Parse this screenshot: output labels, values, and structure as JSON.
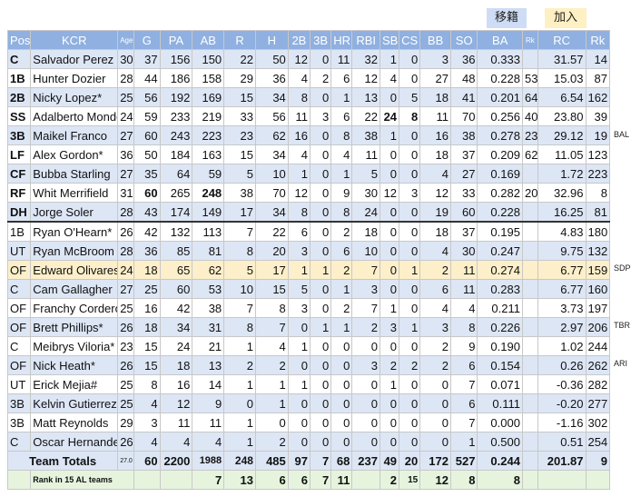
{
  "buttons": {
    "transfer": "移籍",
    "join": "加入"
  },
  "headers": [
    "Pos",
    "KCR",
    "Age",
    "G",
    "PA",
    "AB",
    "R",
    "H",
    "2B",
    "3B",
    "HR",
    "RBI",
    "SB",
    "CS",
    "BB",
    "SO",
    "BA",
    "Rk",
    "RC",
    "Rk"
  ],
  "rows": [
    {
      "pos": "C",
      "name": "Salvador Perez",
      "age": "30",
      "g": "37",
      "pa": "156",
      "ab": "150",
      "r": "22",
      "h": "50",
      "d": "12",
      "t": "0",
      "hr": "11",
      "rbi": "32",
      "sb": "1",
      "cs": "0",
      "bb": "3",
      "so": "36",
      "ba": "0.333",
      "rk1": "",
      "rc": "31.57",
      "rk2": "14",
      "side": ""
    },
    {
      "pos": "1B",
      "name": "Hunter Dozier",
      "age": "28",
      "g": "44",
      "pa": "186",
      "ab": "158",
      "r": "29",
      "h": "36",
      "d": "4",
      "t": "2",
      "hr": "6",
      "rbi": "12",
      "sb": "4",
      "cs": "0",
      "bb": "27",
      "so": "48",
      "ba": "0.228",
      "rk1": "53",
      "rc": "15.03",
      "rk2": "87",
      "side": ""
    },
    {
      "pos": "2B",
      "name": "Nicky Lopez*",
      "age": "25",
      "g": "56",
      "pa": "192",
      "ab": "169",
      "r": "15",
      "h": "34",
      "d": "8",
      "t": "0",
      "hr": "1",
      "rbi": "13",
      "sb": "0",
      "cs": "5",
      "bb": "18",
      "so": "41",
      "ba": "0.201",
      "rk1": "64",
      "rc": "6.54",
      "rk2": "162",
      "side": ""
    },
    {
      "pos": "SS",
      "name": "Adalberto Mondesi#",
      "age": "24",
      "g": "59",
      "pa": "233",
      "ab": "219",
      "r": "33",
      "h": "56",
      "d": "11",
      "t": "3",
      "hr": "6",
      "rbi": "22",
      "sb": "24",
      "cs": "8",
      "bb": "11",
      "so": "70",
      "ba": "0.256",
      "rk1": "40",
      "rc": "23.80",
      "rk2": "39",
      "side": ""
    },
    {
      "pos": "3B",
      "name": "Maikel Franco",
      "age": "27",
      "g": "60",
      "pa": "243",
      "ab": "223",
      "r": "23",
      "h": "62",
      "d": "16",
      "t": "0",
      "hr": "8",
      "rbi": "38",
      "sb": "1",
      "cs": "0",
      "bb": "16",
      "so": "38",
      "ba": "0.278",
      "rk1": "23",
      "rc": "29.12",
      "rk2": "19",
      "side": "BAL"
    },
    {
      "pos": "LF",
      "name": "Alex Gordon*",
      "age": "36",
      "g": "50",
      "pa": "184",
      "ab": "163",
      "r": "15",
      "h": "34",
      "d": "4",
      "t": "0",
      "hr": "4",
      "rbi": "11",
      "sb": "0",
      "cs": "0",
      "bb": "18",
      "so": "37",
      "ba": "0.209",
      "rk1": "62",
      "rc": "11.05",
      "rk2": "123",
      "side": ""
    },
    {
      "pos": "CF",
      "name": "Bubba Starling",
      "age": "27",
      "g": "35",
      "pa": "64",
      "ab": "59",
      "r": "5",
      "h": "10",
      "d": "1",
      "t": "0",
      "hr": "1",
      "rbi": "5",
      "sb": "0",
      "cs": "0",
      "bb": "4",
      "so": "27",
      "ba": "0.169",
      "rk1": "",
      "rc": "1.72",
      "rk2": "223",
      "side": ""
    },
    {
      "pos": "RF",
      "name": "Whit Merrifield",
      "age": "31",
      "g": "60",
      "pa": "265",
      "ab": "248",
      "r": "38",
      "h": "70",
      "d": "12",
      "t": "0",
      "hr": "9",
      "rbi": "30",
      "sb": "12",
      "cs": "3",
      "bb": "12",
      "so": "33",
      "ba": "0.282",
      "rk1": "20",
      "rc": "32.96",
      "rk2": "8",
      "side": ""
    },
    {
      "pos": "DH",
      "name": "Jorge Soler",
      "age": "28",
      "g": "43",
      "pa": "174",
      "ab": "149",
      "r": "17",
      "h": "34",
      "d": "8",
      "t": "0",
      "hr": "8",
      "rbi": "24",
      "sb": "0",
      "cs": "0",
      "bb": "19",
      "so": "60",
      "ba": "0.228",
      "rk1": "",
      "rc": "16.25",
      "rk2": "81",
      "side": ""
    },
    {
      "pos": "1B",
      "name": "Ryan O'Hearn*",
      "age": "26",
      "g": "42",
      "pa": "132",
      "ab": "113",
      "r": "7",
      "h": "22",
      "d": "6",
      "t": "0",
      "hr": "2",
      "rbi": "18",
      "sb": "0",
      "cs": "0",
      "bb": "18",
      "so": "37",
      "ba": "0.195",
      "rk1": "",
      "rc": "4.83",
      "rk2": "180",
      "side": ""
    },
    {
      "pos": "UT",
      "name": "Ryan McBroom",
      "age": "28",
      "g": "36",
      "pa": "85",
      "ab": "81",
      "r": "8",
      "h": "20",
      "d": "3",
      "t": "0",
      "hr": "6",
      "rbi": "10",
      "sb": "0",
      "cs": "0",
      "bb": "4",
      "so": "30",
      "ba": "0.247",
      "rk1": "",
      "rc": "9.75",
      "rk2": "132",
      "side": ""
    },
    {
      "pos": "OF",
      "name": "Edward Olivares",
      "age": "24",
      "g": "18",
      "pa": "65",
      "ab": "62",
      "r": "5",
      "h": "17",
      "d": "1",
      "t": "1",
      "hr": "2",
      "rbi": "7",
      "sb": "0",
      "cs": "1",
      "bb": "2",
      "so": "11",
      "ba": "0.274",
      "rk1": "",
      "rc": "6.77",
      "rk2": "159",
      "side": "SDP"
    },
    {
      "pos": "C",
      "name": "Cam Gallagher",
      "age": "27",
      "g": "25",
      "pa": "60",
      "ab": "53",
      "r": "10",
      "h": "15",
      "d": "5",
      "t": "0",
      "hr": "1",
      "rbi": "3",
      "sb": "0",
      "cs": "0",
      "bb": "6",
      "so": "11",
      "ba": "0.283",
      "rk1": "",
      "rc": "6.77",
      "rk2": "160",
      "side": ""
    },
    {
      "pos": "OF",
      "name": "Franchy Cordero*",
      "age": "25",
      "g": "16",
      "pa": "42",
      "ab": "38",
      "r": "7",
      "h": "8",
      "d": "3",
      "t": "0",
      "hr": "2",
      "rbi": "7",
      "sb": "1",
      "cs": "0",
      "bb": "4",
      "so": "4",
      "ba": "0.211",
      "rk1": "",
      "rc": "3.73",
      "rk2": "197",
      "side": ""
    },
    {
      "pos": "OF",
      "name": "Brett Phillips*",
      "age": "26",
      "g": "18",
      "pa": "34",
      "ab": "31",
      "r": "8",
      "h": "7",
      "d": "0",
      "t": "1",
      "hr": "1",
      "rbi": "2",
      "sb": "3",
      "cs": "1",
      "bb": "3",
      "so": "8",
      "ba": "0.226",
      "rk1": "",
      "rc": "2.97",
      "rk2": "206",
      "side": "TBR"
    },
    {
      "pos": "C",
      "name": "Meibrys Viloria*",
      "age": "23",
      "g": "15",
      "pa": "24",
      "ab": "21",
      "r": "1",
      "h": "4",
      "d": "1",
      "t": "0",
      "hr": "0",
      "rbi": "0",
      "sb": "0",
      "cs": "0",
      "bb": "2",
      "so": "9",
      "ba": "0.190",
      "rk1": "",
      "rc": "1.02",
      "rk2": "244",
      "side": ""
    },
    {
      "pos": "OF",
      "name": "Nick Heath*",
      "age": "26",
      "g": "15",
      "pa": "18",
      "ab": "13",
      "r": "2",
      "h": "2",
      "d": "0",
      "t": "0",
      "hr": "0",
      "rbi": "3",
      "sb": "2",
      "cs": "2",
      "bb": "2",
      "so": "6",
      "ba": "0.154",
      "rk1": "",
      "rc": "0.26",
      "rk2": "262",
      "side": "ARI"
    },
    {
      "pos": "UT",
      "name": "Erick Mejia#",
      "age": "25",
      "g": "8",
      "pa": "16",
      "ab": "14",
      "r": "1",
      "h": "1",
      "d": "1",
      "t": "0",
      "hr": "0",
      "rbi": "0",
      "sb": "1",
      "cs": "0",
      "bb": "0",
      "so": "7",
      "ba": "0.071",
      "rk1": "",
      "rc": "-0.36",
      "rk2": "282",
      "side": ""
    },
    {
      "pos": "3B",
      "name": "Kelvin Gutierrez",
      "age": "25",
      "g": "4",
      "pa": "12",
      "ab": "9",
      "r": "0",
      "h": "1",
      "d": "0",
      "t": "0",
      "hr": "0",
      "rbi": "0",
      "sb": "0",
      "cs": "0",
      "bb": "0",
      "so": "6",
      "ba": "0.111",
      "rk1": "",
      "rc": "-0.20",
      "rk2": "277",
      "side": ""
    },
    {
      "pos": "3B",
      "name": "Matt Reynolds",
      "age": "29",
      "g": "3",
      "pa": "11",
      "ab": "11",
      "r": "1",
      "h": "0",
      "d": "0",
      "t": "0",
      "hr": "0",
      "rbi": "0",
      "sb": "0",
      "cs": "0",
      "bb": "0",
      "so": "7",
      "ba": "0.000",
      "rk1": "",
      "rc": "-1.16",
      "rk2": "302",
      "side": ""
    },
    {
      "pos": "C",
      "name": "Oscar Hernandez",
      "age": "26",
      "g": "4",
      "pa": "4",
      "ab": "4",
      "r": "1",
      "h": "2",
      "d": "0",
      "t": "0",
      "hr": "0",
      "rbi": "0",
      "sb": "0",
      "cs": "0",
      "bb": "0",
      "so": "1",
      "ba": "0.500",
      "rk1": "",
      "rc": "0.51",
      "rk2": "254",
      "side": ""
    }
  ],
  "totals": {
    "label": "Team Totals",
    "age": "27.0",
    "g": "60",
    "pa": "2200",
    "ab": "1988",
    "r": "248",
    "h": "485",
    "d": "97",
    "t": "7",
    "hr": "68",
    "rbi": "237",
    "sb": "49",
    "cs": "20",
    "bb": "172",
    "so": "527",
    "ba": "0.244",
    "rk1": "",
    "rc": "201.87",
    "rk2": "9"
  },
  "rank": {
    "label": "Rank in 15 AL teams",
    "ab": "7",
    "r": "13",
    "h": "6",
    "d": "6",
    "t": "7",
    "hr": "11",
    "sb": "2",
    "cs": "15",
    "bb": "12",
    "so": "8",
    "ba": "8"
  },
  "colors": {
    "header_bg": "#8fb0e0",
    "row_blue": "#dde6f5",
    "row_highlight": "#fcefc9",
    "rank_bg": "#e6f4de",
    "negative": "#e03030"
  }
}
